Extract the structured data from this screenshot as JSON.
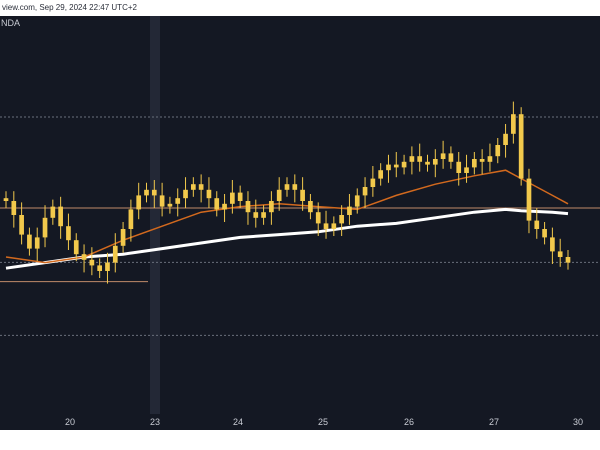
{
  "header": {
    "source_line": "view.com, Sep 29, 2024 22:47 UTC+2",
    "symbol_fragment": "NDA"
  },
  "colors": {
    "background": "#141823",
    "candle": "#f2c94c",
    "ma_fast": "#d2691e",
    "ma_slow": "#ffffff",
    "level_line": "#c08a6a"
  },
  "chart_data": {
    "type": "candlestick",
    "title": "",
    "xlabel": "",
    "ylabel": "",
    "x_ticks": [
      "20",
      "23",
      "24",
      "25",
      "26",
      "27",
      "30"
    ],
    "ylim": [
      0,
      100
    ],
    "levels": [
      {
        "name": "",
        "value": 80
      },
      {
        "name": "",
        "value": 47.5
      },
      {
        "name": "",
        "value": 28.1
      },
      {
        "name": "",
        "value": 21.2
      },
      {
        "name": "",
        "value": 2
      }
    ],
    "close_series": [
      [
        0,
        50
      ],
      [
        1,
        45
      ],
      [
        2,
        38
      ],
      [
        3,
        33
      ],
      [
        4,
        37
      ],
      [
        5,
        44
      ],
      [
        6,
        48
      ],
      [
        7,
        41
      ],
      [
        8,
        36
      ],
      [
        9,
        31
      ],
      [
        10,
        29
      ],
      [
        11,
        27
      ],
      [
        12,
        25
      ],
      [
        13,
        28
      ],
      [
        14,
        34
      ],
      [
        15,
        40
      ],
      [
        16,
        47
      ],
      [
        17,
        52
      ],
      [
        18,
        54
      ],
      [
        19,
        52
      ],
      [
        20,
        48
      ],
      [
        21,
        49
      ],
      [
        22,
        51
      ],
      [
        23,
        54
      ],
      [
        24,
        56
      ],
      [
        25,
        54
      ],
      [
        26,
        51
      ],
      [
        27,
        47
      ],
      [
        28,
        49
      ],
      [
        29,
        53
      ],
      [
        30,
        50
      ],
      [
        31,
        46
      ],
      [
        32,
        44
      ],
      [
        33,
        46
      ],
      [
        34,
        50
      ],
      [
        35,
        54
      ],
      [
        36,
        56
      ],
      [
        37,
        54
      ],
      [
        38,
        50
      ],
      [
        39,
        46
      ],
      [
        40,
        42
      ],
      [
        41,
        40
      ],
      [
        42,
        42
      ],
      [
        43,
        45
      ],
      [
        44,
        48
      ],
      [
        45,
        52
      ],
      [
        46,
        55
      ],
      [
        47,
        58
      ],
      [
        48,
        61
      ],
      [
        49,
        63
      ],
      [
        50,
        62
      ],
      [
        51,
        64
      ],
      [
        52,
        66
      ],
      [
        53,
        64
      ],
      [
        54,
        63
      ],
      [
        55,
        65
      ],
      [
        56,
        67
      ],
      [
        57,
        64
      ],
      [
        58,
        60
      ],
      [
        59,
        62
      ],
      [
        60,
        65
      ],
      [
        61,
        64
      ],
      [
        62,
        66
      ],
      [
        63,
        70
      ],
      [
        64,
        74
      ],
      [
        65,
        81
      ],
      [
        66,
        58
      ],
      [
        67,
        43
      ],
      [
        68,
        40
      ],
      [
        69,
        37
      ],
      [
        70,
        32
      ],
      [
        71,
        30
      ],
      [
        72,
        28
      ]
    ],
    "ma_fast": [
      [
        0,
        30
      ],
      [
        5,
        28
      ],
      [
        10,
        30
      ],
      [
        15,
        36
      ],
      [
        20,
        41
      ],
      [
        25,
        46
      ],
      [
        30,
        48
      ],
      [
        35,
        49
      ],
      [
        40,
        48
      ],
      [
        45,
        47
      ],
      [
        50,
        52
      ],
      [
        55,
        56
      ],
      [
        60,
        59
      ],
      [
        64,
        61
      ],
      [
        66,
        58
      ],
      [
        70,
        52
      ],
      [
        72,
        49
      ]
    ],
    "ma_slow": [
      [
        0,
        26
      ],
      [
        5,
        28
      ],
      [
        10,
        30
      ],
      [
        15,
        31
      ],
      [
        20,
        33
      ],
      [
        25,
        35
      ],
      [
        30,
        37
      ],
      [
        35,
        38
      ],
      [
        40,
        39
      ],
      [
        45,
        41
      ],
      [
        50,
        42
      ],
      [
        55,
        44
      ],
      [
        60,
        46
      ],
      [
        64,
        47
      ],
      [
        66,
        46.5
      ],
      [
        70,
        46
      ],
      [
        72,
        45.5
      ]
    ]
  }
}
